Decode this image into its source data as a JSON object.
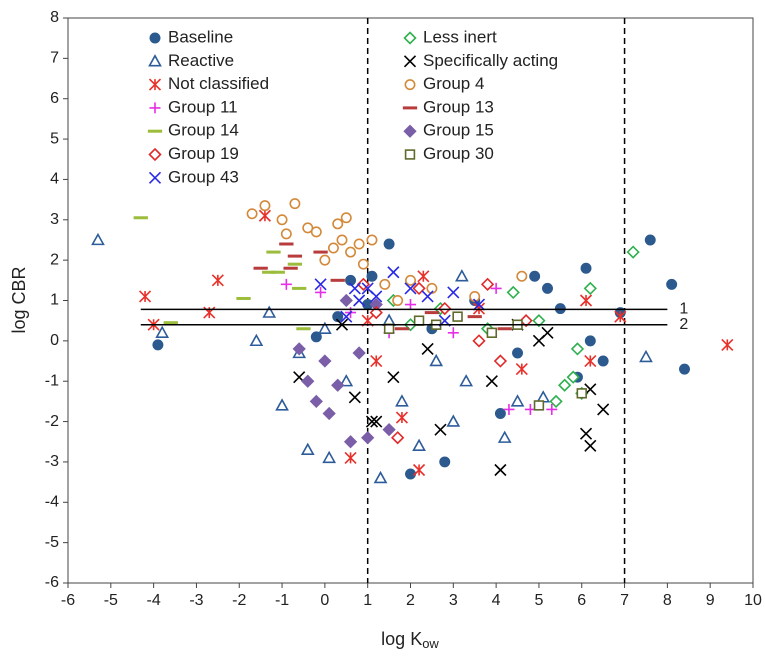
{
  "chart_data": {
    "type": "scatter",
    "xlabel": {
      "text": "log K",
      "subscript": "ow"
    },
    "ylabel": "log CBR",
    "xlim": [
      -6,
      10
    ],
    "ylim": [
      -6,
      8
    ],
    "xticks": [
      -6,
      -5,
      -4,
      -3,
      -2,
      -1,
      0,
      1,
      2,
      3,
      4,
      5,
      6,
      7,
      8,
      9,
      10
    ],
    "yticks": [
      -6,
      -5,
      -4,
      -3,
      -2,
      -1,
      0,
      1,
      2,
      3,
      4,
      5,
      6,
      7,
      8
    ],
    "grid": false,
    "legend": "top-left",
    "vlines": [
      1,
      7
    ],
    "hlines": [
      {
        "y": 0.78,
        "x": [
          -4.3,
          8
        ],
        "label": "1"
      },
      {
        "y": 0.4,
        "x": [
          -4.3,
          8
        ],
        "label": "2"
      }
    ],
    "series": [
      {
        "name": "Baseline",
        "color": "#2c5a8e",
        "marker": "circle",
        "filled": true,
        "x": [
          -3.9,
          0.6,
          1.1,
          1.5,
          2.0,
          2.8,
          4.1,
          5.2,
          6.1,
          6.9,
          7.6,
          8.1,
          8.4,
          6.5,
          5.9,
          4.9,
          3.5,
          0.3,
          -0.2,
          2.5,
          4.5,
          6.2,
          5.5,
          1.0
        ],
        "values": [
          -0.1,
          1.5,
          1.6,
          2.4,
          -3.3,
          -3.0,
          -1.8,
          1.3,
          1.8,
          0.7,
          2.5,
          1.4,
          -0.7,
          -0.5,
          -0.9,
          1.6,
          1.0,
          0.6,
          0.1,
          0.3,
          -0.3,
          0.0,
          0.8,
          0.9
        ]
      },
      {
        "name": "Less inert",
        "color": "#2fb04f",
        "marker": "diamond",
        "filled": false,
        "x": [
          7.2,
          6.2,
          5.8,
          5.9,
          6.0,
          5.4,
          2.0,
          3.8,
          4.4,
          5.0,
          1.6,
          2.7,
          5.6
        ],
        "values": [
          2.2,
          1.3,
          -0.9,
          -0.2,
          -1.3,
          -1.5,
          0.4,
          0.3,
          1.2,
          0.5,
          1.0,
          0.8,
          -1.1
        ]
      },
      {
        "name": "Reactive",
        "color": "#2d5c9a",
        "marker": "triangle",
        "filled": false,
        "x": [
          -5.3,
          -3.8,
          -1.6,
          -1.0,
          -0.4,
          0.1,
          1.3,
          2.2,
          3.0,
          4.2,
          4.5,
          7.5,
          0.5,
          1.8,
          2.6,
          3.3,
          1.5,
          0.0,
          -0.6,
          -1.3,
          3.2,
          5.1
        ],
        "values": [
          2.5,
          0.2,
          0.0,
          -1.6,
          -2.7,
          -2.9,
          -3.4,
          -2.6,
          -2.0,
          -2.4,
          -1.5,
          -0.4,
          -1.0,
          -1.5,
          -0.5,
          -1.0,
          0.5,
          0.3,
          -0.3,
          0.7,
          1.6,
          -1.4
        ]
      },
      {
        "name": "Specifically acting",
        "color": "#000000",
        "marker": "x",
        "filled": false,
        "x": [
          -0.6,
          0.4,
          0.7,
          1.1,
          1.2,
          2.7,
          3.9,
          4.1,
          4.5,
          5.0,
          6.1,
          6.2,
          6.2,
          6.5,
          5.2,
          2.4,
          1.6
        ],
        "values": [
          -0.9,
          0.4,
          -1.4,
          -2.0,
          -2.0,
          -2.2,
          -1.0,
          -3.2,
          0.4,
          0.0,
          -2.3,
          -2.6,
          -1.2,
          -1.7,
          0.2,
          -0.2,
          -0.9
        ]
      },
      {
        "name": "Not classified",
        "color": "#e8312a",
        "marker": "asterisk",
        "filled": false,
        "x": [
          -4.2,
          -4.0,
          -2.7,
          -2.5,
          -1.4,
          0.6,
          1.2,
          1.8,
          2.3,
          2.2,
          3.6,
          4.6,
          6.1,
          6.2,
          6.9,
          9.4,
          1.0
        ],
        "values": [
          1.1,
          0.4,
          0.7,
          1.5,
          3.1,
          -2.9,
          -0.5,
          -1.9,
          1.6,
          -3.2,
          0.8,
          -0.7,
          1.0,
          -0.5,
          0.6,
          -0.1,
          0.5
        ]
      },
      {
        "name": "Group 4",
        "color": "#d4893a",
        "marker": "circle",
        "filled": false,
        "x": [
          -1.7,
          -1.4,
          -1.0,
          -0.9,
          -0.7,
          -0.4,
          -0.2,
          0.3,
          0.4,
          0.5,
          0.2,
          0.6,
          0.8,
          1.1,
          0.9,
          1.4,
          2.0,
          2.5,
          3.5,
          4.6,
          0.0,
          1.7
        ],
        "values": [
          3.15,
          3.35,
          3.0,
          2.65,
          3.4,
          2.8,
          2.7,
          2.9,
          2.5,
          3.05,
          2.3,
          2.2,
          2.4,
          2.5,
          1.9,
          1.4,
          1.5,
          1.3,
          1.1,
          1.6,
          2.0,
          1.0
        ]
      },
      {
        "name": "Group 11",
        "color": "#e62ee6",
        "marker": "plus",
        "filled": false,
        "x": [
          -0.9,
          -0.1,
          0.6,
          2.0,
          3.0,
          4.0,
          4.3,
          4.8,
          5.3,
          1.5
        ],
        "values": [
          1.4,
          1.2,
          0.7,
          0.9,
          0.2,
          1.3,
          -1.7,
          -1.7,
          -1.7,
          0.2
        ]
      },
      {
        "name": "Group 13",
        "color": "#b83c3c",
        "marker": "dash",
        "filled": false,
        "x": [
          -0.9,
          -0.8,
          -0.7,
          -1.5,
          -0.1,
          0.3,
          2.5,
          3.5,
          4.2,
          1.8
        ],
        "values": [
          2.4,
          1.8,
          2.1,
          1.8,
          2.2,
          1.5,
          0.7,
          0.6,
          0.3,
          0.3
        ]
      },
      {
        "name": "Group 14",
        "color": "#9cbd3b",
        "marker": "dash",
        "filled": false,
        "x": [
          -4.3,
          -1.9,
          -1.2,
          -1.1,
          -0.7,
          -0.6,
          -0.5,
          -3.6,
          -1.3
        ],
        "values": [
          3.05,
          1.05,
          2.2,
          1.7,
          1.9,
          1.3,
          0.3,
          0.45,
          1.7
        ]
      },
      {
        "name": "Group 15",
        "color": "#7b5ea8",
        "marker": "diamond",
        "filled": true,
        "x": [
          -0.6,
          -0.2,
          0.1,
          0.6,
          1.0,
          1.5,
          0.0,
          0.3,
          1.2,
          0.5,
          -0.4,
          0.8
        ],
        "values": [
          -0.2,
          -1.5,
          -1.8,
          -2.5,
          -2.4,
          -2.2,
          -0.5,
          -1.1,
          0.9,
          1.0,
          -1.0,
          -0.3
        ]
      },
      {
        "name": "Group 19",
        "color": "#e02a2a",
        "marker": "diamond",
        "filled": false,
        "x": [
          1.7,
          1.2,
          2.2,
          3.8,
          4.7,
          3.6,
          2.8,
          4.1,
          0.9
        ],
        "values": [
          -2.4,
          0.7,
          1.3,
          1.4,
          0.5,
          0.0,
          0.8,
          -0.5,
          1.4
        ]
      },
      {
        "name": "Group 30",
        "color": "#5f6a2a",
        "marker": "square",
        "filled": false,
        "x": [
          5.0,
          6.0,
          2.6,
          3.1,
          3.9,
          2.2,
          4.5,
          1.5
        ],
        "values": [
          -1.6,
          -1.3,
          0.4,
          0.6,
          0.2,
          0.5,
          0.4,
          0.3
        ]
      },
      {
        "name": "Group 43",
        "color": "#2a2ae6",
        "marker": "x",
        "filled": false,
        "x": [
          -0.1,
          0.5,
          0.8,
          1.2,
          1.6,
          2.0,
          2.4,
          3.0,
          3.6,
          0.7,
          1.0,
          2.8
        ],
        "values": [
          1.4,
          0.6,
          1.0,
          1.1,
          1.7,
          1.3,
          1.1,
          1.2,
          0.9,
          1.3,
          1.3,
          0.5
        ]
      }
    ]
  }
}
